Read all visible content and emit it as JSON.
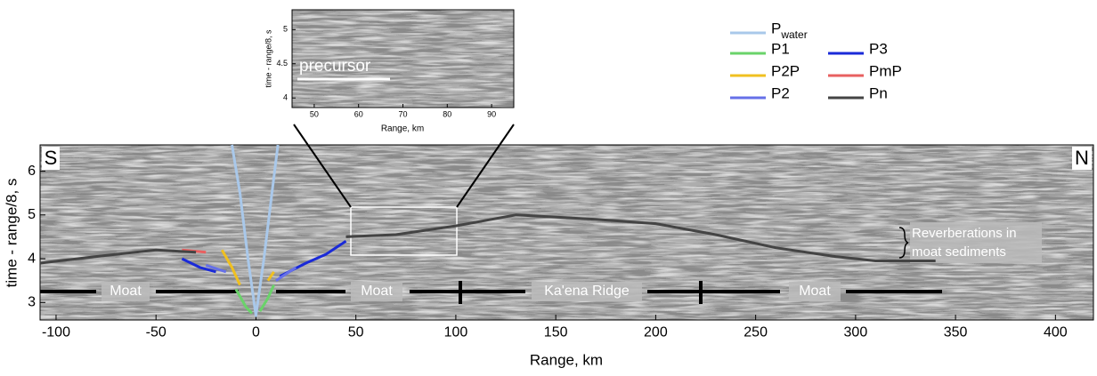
{
  "chart_data": [
    {
      "type": "line",
      "xlabel": "Range, km",
      "ylabel": "time - range/8, s",
      "xlim": [
        -108,
        419
      ],
      "ylim": [
        2.6,
        6.6
      ],
      "xticks": [
        -100,
        -50,
        0,
        50,
        100,
        150,
        200,
        250,
        300,
        350,
        400
      ],
      "yticks": [
        3,
        4,
        5,
        6
      ],
      "corner_labels": [
        "S",
        "N"
      ],
      "annotations": [
        "Moat",
        "Moat",
        "Ka'ena Ridge",
        "Moat",
        "Reverberations in moat sediments"
      ],
      "series": [
        {
          "name": "P",
          "subscript": "water",
          "color": "#a9c8ea",
          "x": [
            -12,
            -8,
            -4,
            0,
            4,
            8,
            11
          ],
          "values": [
            6.6,
            5.5,
            4.0,
            2.7,
            4.0,
            5.5,
            6.6
          ]
        },
        {
          "name": "P1",
          "color": "#6ad36a",
          "x": [
            -10,
            -5,
            -2,
            null,
            2,
            6,
            9
          ],
          "values": [
            3.3,
            2.9,
            2.75,
            null,
            2.8,
            3.1,
            3.4
          ]
        },
        {
          "name": "P3",
          "color": "#1a2ad8",
          "x": [
            -37,
            -28,
            -20,
            null,
            12,
            25,
            35,
            45
          ],
          "values": [
            4.0,
            3.8,
            3.7,
            null,
            3.6,
            3.9,
            4.1,
            4.4
          ]
        },
        {
          "name": "P2P",
          "color": "#f0c020",
          "x": [
            -17,
            -12,
            -8,
            null,
            6,
            9
          ],
          "values": [
            4.2,
            3.8,
            3.4,
            null,
            3.5,
            3.7
          ]
        },
        {
          "name": "PmP",
          "color": "#e86060",
          "x": [
            -37,
            -25
          ],
          "values": [
            4.2,
            4.15
          ]
        },
        {
          "name": "P2",
          "color": "#6670e8",
          "x": [
            -25,
            -15,
            null,
            10,
            20
          ],
          "values": [
            3.85,
            3.7,
            null,
            3.5,
            3.8
          ]
        },
        {
          "name": "Pn",
          "color": "#444444",
          "x": [
            -108,
            -80,
            -50,
            -30,
            null,
            45,
            70,
            100,
            130,
            170,
            200,
            230,
            260,
            290,
            310,
            340
          ],
          "values": [
            3.9,
            4.05,
            4.2,
            4.15,
            null,
            4.5,
            4.55,
            4.75,
            5.0,
            4.9,
            4.8,
            4.55,
            4.25,
            4.05,
            3.95,
            3.95
          ]
        }
      ]
    },
    {
      "type": "inset",
      "xlabel": "Range, km",
      "ylabel": "time - range/8, s",
      "xlim": [
        45,
        95
      ],
      "ylim": [
        3.86,
        5.29
      ],
      "xticks": [
        50,
        60,
        70,
        80,
        90
      ],
      "yticks": [
        4,
        4.5,
        5
      ],
      "annotations": [
        "precursor"
      ]
    }
  ]
}
